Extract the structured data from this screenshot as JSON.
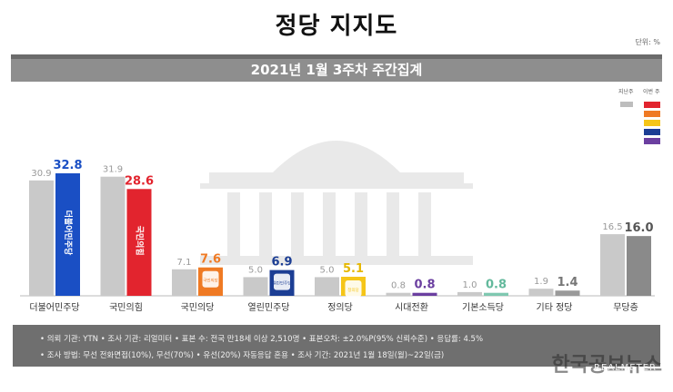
{
  "title": "정당 지지도",
  "unit": "단위: %",
  "subtitle": "2021년 1월 3주차 주간집계",
  "legend": {
    "prev_label": "지난주",
    "cur_label": "이번 주",
    "colors": [
      "#e2242e",
      "#ef7a24",
      "#f5c518",
      "#1c3e94",
      "#6b3fa0"
    ]
  },
  "chart_data": {
    "type": "bar",
    "categories": [
      "더불어민주당",
      "국민의힘",
      "국민의당",
      "열린민주당",
      "정의당",
      "시대전환",
      "기본소득당",
      "기타 정당",
      "무당층"
    ],
    "series": [
      {
        "name": "지난주",
        "values": [
          30.9,
          31.9,
          7.1,
          5.0,
          5.0,
          0.8,
          1.0,
          1.9,
          16.5
        ],
        "color": "#c9c9c9"
      },
      {
        "name": "이번 주",
        "values": [
          32.8,
          28.6,
          7.6,
          6.9,
          5.1,
          0.8,
          0.8,
          1.4,
          16.0
        ],
        "colors": [
          "#1a4fc4",
          "#e2242e",
          "#ef7a24",
          "#1c3e94",
          "#f5c518",
          "#6b3fa0",
          "#7fc8b0",
          "#9a9a9a",
          "#8a8a8a"
        ]
      }
    ],
    "value_label_colors": [
      "#1a4fc4",
      "#e2242e",
      "#ef7a24",
      "#1c3e94",
      "#e6b800",
      "#6b3fa0",
      "#63b99c",
      "#777777",
      "#555555"
    ],
    "bar_logos": [
      "더불어민주당",
      "국민의힘",
      "국민의당",
      "열린민주당",
      "정의당",
      "",
      "",
      "",
      ""
    ],
    "ylim": [
      0,
      40
    ]
  },
  "footer": {
    "line1": "• 의뢰 기관: YTN   • 조사 기관: 리얼미터   • 표본 수: 전국 만18세 이상 2,510명   • 표본오차: ±2.0%P(95% 신뢰수준)   • 응답률: 4.5%",
    "line2": "• 조사 방법: 무선 전화면접(10%), 무선(70%) • 유선(20%) 자동응답 혼용   • 조사 기간: 2021년 1월 18일(월)~22일(금)"
  },
  "brand": "한국공보뉴스",
  "brand_sub": "REALMETER"
}
